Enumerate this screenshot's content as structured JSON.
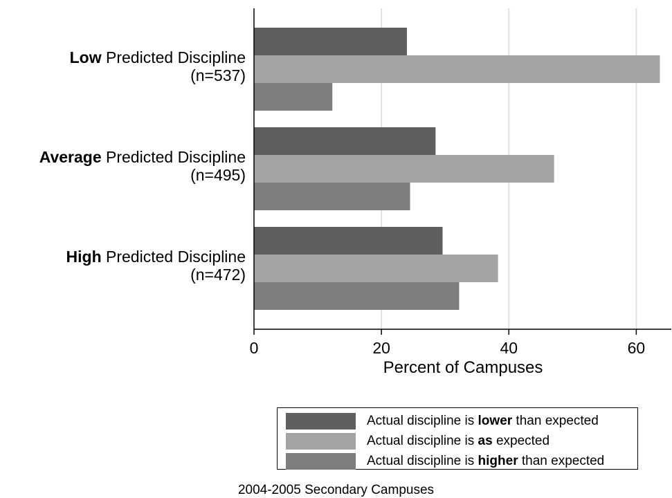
{
  "chart_data": {
    "type": "bar",
    "orientation": "horizontal",
    "categories": [
      {
        "bold": "Low",
        "rest": " Predicted Discipline",
        "n": "(n=537)"
      },
      {
        "bold": "Average",
        "rest": " Predicted Discipline",
        "n": "(n=495)"
      },
      {
        "bold": "High",
        "rest": " Predicted Discipline",
        "n": "(n=472)"
      }
    ],
    "series": [
      {
        "prefix": "Actual discipline is ",
        "bold": "lower",
        "suffix": " than expected",
        "color": "#5f5f5f",
        "values": [
          24.0,
          28.5,
          29.6
        ]
      },
      {
        "prefix": "Actual discipline is ",
        "bold": "as",
        "suffix": " expected",
        "color": "#a3a3a3",
        "values": [
          63.7,
          47.1,
          38.3
        ]
      },
      {
        "prefix": "Actual discipline is ",
        "bold": "higher",
        "suffix": " than expected",
        "color": "#7d7d7d",
        "values": [
          12.3,
          24.5,
          32.2
        ]
      }
    ],
    "xlabel": "Percent of Campuses",
    "xlim": [
      0,
      65.5
    ],
    "xticks": [
      0,
      20,
      40,
      60
    ],
    "grid": true,
    "legend_position": "bottom",
    "note": "2004-2005 Secondary Campuses"
  }
}
